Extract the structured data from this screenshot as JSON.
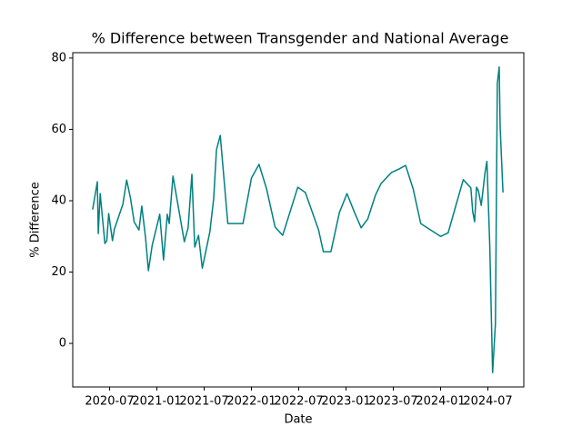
{
  "chart_data": {
    "type": "line",
    "title": "% Difference between Transgender and National Average",
    "x_label": "Date",
    "y_label": "% Difference",
    "x": [
      2020.32,
      2020.37,
      2020.38,
      2020.4,
      2020.45,
      2020.47,
      2020.49,
      2020.53,
      2020.55,
      2020.64,
      2020.68,
      2020.72,
      2020.76,
      2020.81,
      2020.84,
      2020.88,
      2020.91,
      2020.95,
      2021.03,
      2021.07,
      2021.11,
      2021.13,
      2021.17,
      2021.24,
      2021.29,
      2021.33,
      2021.37,
      2021.4,
      2021.44,
      2021.48,
      2021.56,
      2021.6,
      2021.63,
      2021.67,
      2021.75,
      2021.91,
      2022.0,
      2022.08,
      2022.16,
      2022.25,
      2022.33,
      2022.49,
      2022.57,
      2022.71,
      2022.76,
      2022.84,
      2022.93,
      2023.01,
      2023.09,
      2023.16,
      2023.23,
      2023.31,
      2023.37,
      2023.48,
      2023.56,
      2023.63,
      2023.71,
      2023.79,
      2024.0,
      2024.08,
      2024.16,
      2024.24,
      2024.32,
      2024.34,
      2024.36,
      2024.38,
      2024.4,
      2024.43,
      2024.47,
      2024.49,
      2024.52,
      2024.55,
      2024.58,
      2024.6,
      2024.62,
      2024.63,
      2024.66
    ],
    "series": [
      {
        "name": "% Difference",
        "color": "#008080",
        "values": [
          37.5,
          45.3,
          30.8,
          42.0,
          28.0,
          28.8,
          36.4,
          28.8,
          32.0,
          39.0,
          45.8,
          40.8,
          34.0,
          31.8,
          38.5,
          29.6,
          20.4,
          27.5,
          36.2,
          23.4,
          36.2,
          33.6,
          46.9,
          36.2,
          28.5,
          32.4,
          47.4,
          27.0,
          30.3,
          21.1,
          31.3,
          40.5,
          54.3,
          58.3,
          33.6,
          33.6,
          46.4,
          50.2,
          43.3,
          32.6,
          30.3,
          43.8,
          42.3,
          31.8,
          25.7,
          25.7,
          36.7,
          42.0,
          36.7,
          32.4,
          34.9,
          41.5,
          44.8,
          47.9,
          48.9,
          49.9,
          43.3,
          33.6,
          30.0,
          31.0,
          38.5,
          45.9,
          43.6,
          36.9,
          34.1,
          43.8,
          42.8,
          38.7,
          47.9,
          51.0,
          27.5,
          -8.2,
          5.6,
          72.9,
          77.5,
          60.6,
          42.3
        ]
      }
    ],
    "xlim": [
      2020.11,
      2024.88
    ],
    "xticks": [
      {
        "value": 2020.5,
        "label": "2020-07"
      },
      {
        "value": 2021,
        "label": "2021-01"
      },
      {
        "value": 2021.5,
        "label": "2021-07"
      },
      {
        "value": 2022,
        "label": "2022-01"
      },
      {
        "value": 2022.5,
        "label": "2022-07"
      },
      {
        "value": 2023,
        "label": "2023-01"
      },
      {
        "value": 2023.5,
        "label": "2023-07"
      },
      {
        "value": 2024,
        "label": "2024-01"
      },
      {
        "value": 2024.5,
        "label": "2024-07"
      }
    ],
    "ylim": [
      -12.2,
      81.5
    ],
    "yticks": [
      0,
      20,
      40,
      60,
      80
    ],
    "grid": false
  }
}
